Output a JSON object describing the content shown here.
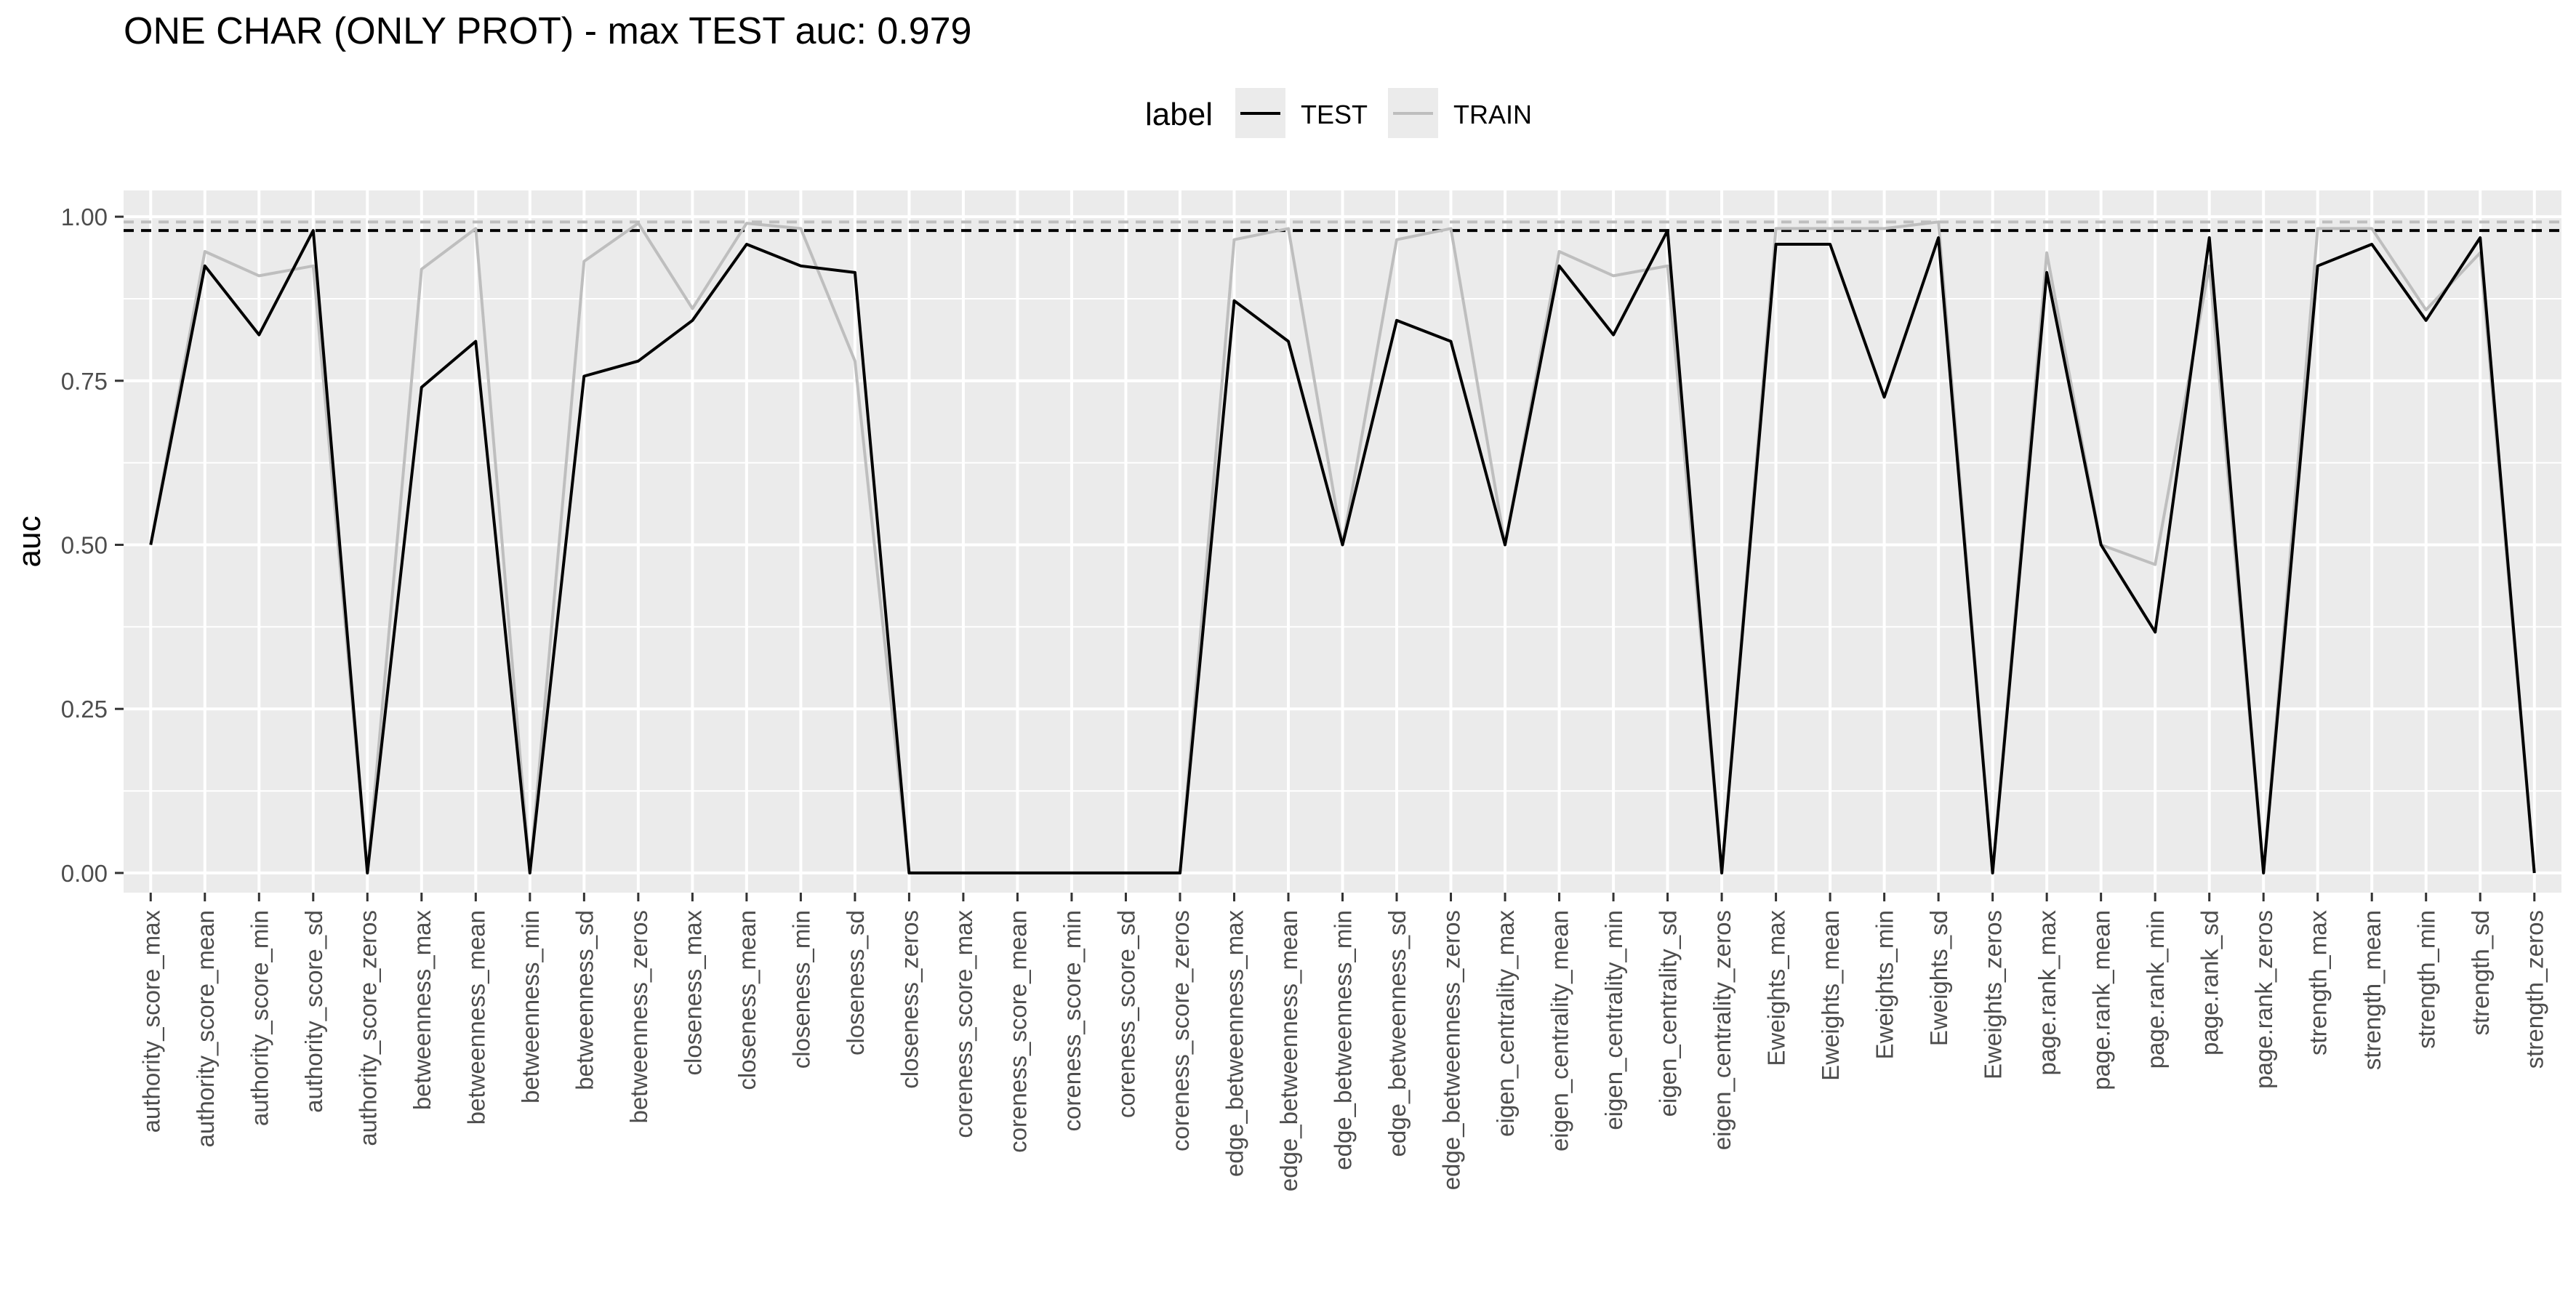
{
  "chart_data": {
    "type": "line",
    "title": "ONE CHAR (ONLY PROT) - max TEST auc: 0.979",
    "xlabel": "",
    "ylabel": "auc",
    "ylim": [
      -0.03,
      1.04
    ],
    "yticks": [
      0.0,
      0.25,
      0.5,
      0.75,
      1.0
    ],
    "ytick_labels": [
      "0.00",
      "0.25",
      "0.50",
      "0.75",
      "1.00"
    ],
    "grid": true,
    "legend": {
      "title": "label",
      "position": "top",
      "entries": [
        "TEST",
        "TRAIN"
      ]
    },
    "categories": [
      "authority_score_max",
      "authority_score_mean",
      "authority_score_min",
      "authority_score_sd",
      "authority_score_zeros",
      "betweenness_max",
      "betweenness_mean",
      "betweenness_min",
      "betweenness_sd",
      "betweenness_zeros",
      "closeness_max",
      "closeness_mean",
      "closeness_min",
      "closeness_sd",
      "closeness_zeros",
      "coreness_score_max",
      "coreness_score_mean",
      "coreness_score_min",
      "coreness_score_sd",
      "coreness_score_zeros",
      "edge_betweenness_max",
      "edge_betweenness_mean",
      "edge_betweenness_min",
      "edge_betweenness_sd",
      "edge_betweenness_zeros",
      "eigen_centrality_max",
      "eigen_centrality_mean",
      "eigen_centrality_min",
      "eigen_centrality_sd",
      "eigen_centrality_zeros",
      "Eweights_max",
      "Eweights_mean",
      "Eweights_min",
      "Eweights_sd",
      "Eweights_zeros",
      "page.rank_max",
      "page.rank_mean",
      "page.rank_min",
      "page.rank_sd",
      "page.rank_zeros",
      "strength_max",
      "strength_mean",
      "strength_min",
      "strength_sd",
      "strength_zeros"
    ],
    "series": [
      {
        "name": "TEST",
        "color": "#000000",
        "values": [
          0.5,
          0.925,
          0.82,
          0.979,
          0.0,
          0.74,
          0.81,
          0.0,
          0.757,
          0.78,
          0.842,
          0.958,
          0.925,
          0.915,
          0.0,
          0.0,
          0.0,
          0.0,
          0.0,
          0.0,
          0.872,
          0.81,
          0.5,
          0.842,
          0.81,
          0.5,
          0.925,
          0.82,
          0.979,
          0.0,
          0.958,
          0.958,
          0.725,
          0.968,
          0.0,
          0.915,
          0.5,
          0.367,
          0.968,
          0.0,
          0.925,
          0.958,
          0.842,
          0.968,
          0.0
        ]
      },
      {
        "name": "TRAIN",
        "color": "#bebebe",
        "values": [
          0.5,
          0.947,
          0.91,
          0.925,
          0.0,
          0.92,
          0.982,
          0.0,
          0.932,
          0.99,
          0.86,
          0.99,
          0.982,
          0.78,
          0.0,
          0.0,
          0.0,
          0.0,
          0.0,
          0.0,
          0.965,
          0.982,
          0.5,
          0.965,
          0.982,
          0.5,
          0.947,
          0.91,
          0.925,
          0.0,
          0.982,
          0.982,
          0.982,
          0.992,
          0.0,
          0.945,
          0.5,
          0.47,
          0.925,
          0.0,
          0.982,
          0.982,
          0.858,
          0.945,
          0.0
        ]
      }
    ],
    "reference_lines": [
      {
        "series": "TEST",
        "value": 0.979,
        "style": "dashed",
        "color": "#000000"
      },
      {
        "series": "TRAIN",
        "value": 0.992,
        "style": "dashed",
        "color": "#bebebe"
      }
    ],
    "colors": {
      "panel_background": "#ebebeb",
      "grid": "#ffffff",
      "axis_text": "#4d4d4d"
    }
  }
}
